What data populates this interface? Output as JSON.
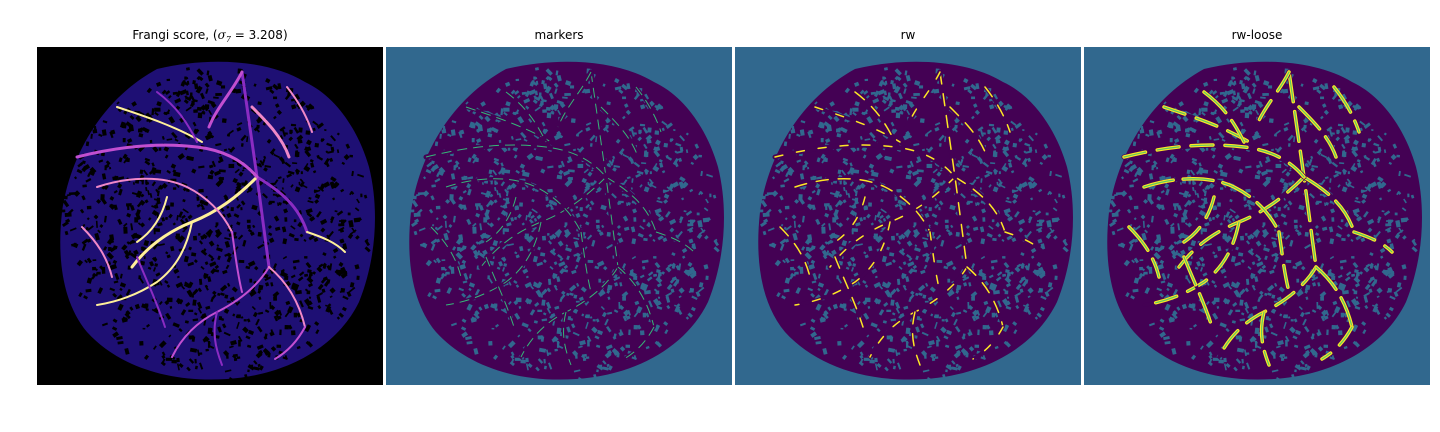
{
  "figure": {
    "panels": [
      {
        "id": "frangi",
        "title_prefix": "Frangi score, (",
        "title_sym": "σ",
        "title_sub": "7",
        "title_suffix": " = 3.208)",
        "colormap": "magma",
        "background": "#000000",
        "mask_color": "#1e0f74",
        "speckle_color": "#000000",
        "vessel_colors": [
          "#8a2cc2",
          "#c24fd0",
          "#f088c8",
          "#fff09a"
        ]
      },
      {
        "id": "markers",
        "title": "markers",
        "colormap": "viridis",
        "background": "#31688e",
        "mask_color": "#440154",
        "speckle_color": "#31688e",
        "marker_color": "#35b779"
      },
      {
        "id": "rw",
        "title": "rw",
        "colormap": "viridis",
        "background": "#31688e",
        "mask_color": "#440154",
        "speckle_color": "#31688e",
        "segment_color": "#fde725"
      },
      {
        "id": "rw-loose",
        "title": "rw-loose",
        "colormap": "viridis",
        "background": "#31688e",
        "mask_color": "#440154",
        "speckle_color": "#31688e",
        "segment_color": "#fde725"
      }
    ]
  }
}
